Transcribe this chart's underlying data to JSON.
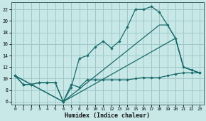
{
  "xlabel": "Humidex (Indice chaleur)",
  "background_color": "#c8e8e8",
  "grid_color": "#a0c8c8",
  "line_color": "#1a6b6b",
  "xlim": [
    -0.5,
    23.5
  ],
  "ylim": [
    5.5,
    23.2
  ],
  "yticks": [
    6,
    8,
    10,
    12,
    14,
    16,
    18,
    20,
    22
  ],
  "xticks": [
    0,
    1,
    2,
    3,
    4,
    5,
    6,
    7,
    8,
    9,
    10,
    11,
    12,
    13,
    14,
    15,
    16,
    17,
    18,
    19,
    20,
    21,
    22,
    23
  ],
  "curve1_x": [
    0,
    1,
    2,
    3,
    4,
    5,
    6,
    7,
    8,
    9,
    10,
    11,
    12,
    13,
    14,
    15,
    16,
    17,
    18,
    19,
    20,
    21,
    22,
    23
  ],
  "curve1_y": [
    10.5,
    9.0,
    9.0,
    9.3,
    9.3,
    9.3,
    6.0,
    9.0,
    8.5,
    9.8,
    9.8,
    9.8,
    9.8,
    9.8,
    9.8,
    10.0,
    10.2,
    10.2,
    10.2,
    10.5,
    10.8,
    11.0,
    11.0,
    11.0
  ],
  "curve2_x": [
    0,
    1,
    2,
    3,
    4,
    5,
    6,
    7,
    8,
    9,
    10,
    11,
    12,
    13,
    14,
    15,
    16,
    17,
    18,
    19,
    20,
    21,
    22,
    23
  ],
  "curve2_y": [
    10.5,
    9.0,
    9.0,
    9.3,
    9.3,
    9.3,
    6.0,
    8.5,
    13.5,
    14.0,
    15.5,
    16.5,
    15.3,
    16.5,
    19.0,
    22.0,
    22.0,
    22.5,
    21.5,
    19.3,
    17.0,
    12.0,
    11.5,
    11.0
  ],
  "diag1_x": [
    0,
    6,
    20,
    21,
    22,
    23
  ],
  "diag1_y": [
    10.5,
    6.0,
    17.0,
    12.0,
    11.5,
    11.0
  ],
  "diag2_x": [
    0,
    6,
    18,
    19,
    20,
    21,
    22,
    23
  ],
  "diag2_y": [
    10.5,
    6.0,
    19.3,
    19.3,
    17.0,
    12.0,
    11.5,
    11.0
  ]
}
